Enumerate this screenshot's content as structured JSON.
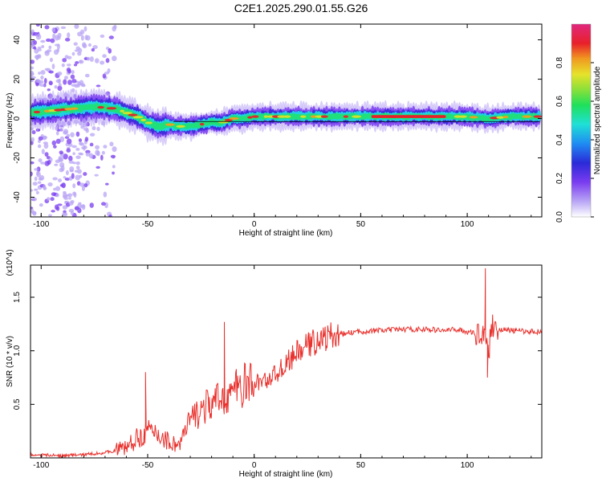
{
  "title": "C2E1.2025.290.01.55.G26",
  "colors": {
    "snr_line": "#e8302c",
    "colormap": [
      "#b9a6f5",
      "#7a3cf0",
      "#3a2ad8",
      "#1f6cf2",
      "#1fd6e6",
      "#1fe07a",
      "#7ae03a",
      "#d8e22a",
      "#f0a020",
      "#e8202a",
      "#e0206e",
      "#e0287e"
    ]
  },
  "colorbar": {
    "label": "Normalized spectral amplitude",
    "ticks": [
      "0.0",
      "0.2",
      "0.4",
      "0.6",
      "0.8"
    ]
  },
  "chart_data": [
    {
      "type": "heatmap",
      "xlabel": "Height of straight line (km)",
      "ylabel": "Frequency (Hz)",
      "xlim": [
        -105,
        135
      ],
      "ylim": [
        -50,
        48
      ],
      "xticks": [
        "-100",
        "-50",
        "0",
        "50",
        "100"
      ],
      "yticks": [
        "40",
        "20",
        "0",
        "-20",
        "-40"
      ],
      "ridge": {
        "x": [
          -105,
          -95,
          -85,
          -75,
          -65,
          -60,
          -55,
          -50,
          -45,
          -40,
          -35,
          -30,
          -25,
          -20,
          -15,
          -10,
          -5,
          0,
          10,
          20,
          40,
          60,
          80,
          100,
          110,
          120,
          135
        ],
        "freq": [
          3,
          4,
          5,
          6,
          5,
          3,
          1,
          -2,
          -4,
          -3,
          -4,
          -4,
          -3,
          -2,
          -2,
          0,
          0,
          1,
          1,
          1,
          1,
          1,
          1,
          1,
          0,
          1,
          1
        ]
      },
      "noise_region_x": [
        -105,
        -65
      ]
    },
    {
      "type": "line",
      "xlabel": "Height of straight line (km)",
      "ylabel": "SNR (10 * v/v)",
      "y_multiplier": "(x10^4)",
      "xlim": [
        -105,
        135
      ],
      "ylim": [
        0,
        1.8
      ],
      "xticks": [
        "-100",
        "-50",
        "0",
        "50",
        "100"
      ],
      "yticks": [
        "1.5",
        "1.0",
        "0.5"
      ],
      "series": [
        {
          "x": [
            -105,
            -90,
            -80,
            -70,
            -65,
            -60,
            -55,
            -50,
            -45,
            -40,
            -35,
            -30,
            -25,
            -20,
            -15,
            -10,
            -5,
            0,
            5,
            10,
            15,
            20,
            25,
            30,
            35,
            40,
            45,
            50,
            60,
            70,
            80,
            90,
            95,
            100,
            105,
            108,
            110,
            112,
            115,
            120,
            130,
            135
          ],
          "y": [
            0.03,
            0.02,
            0.03,
            0.05,
            0.07,
            0.1,
            0.18,
            0.25,
            0.22,
            0.15,
            0.12,
            0.35,
            0.45,
            0.5,
            0.55,
            0.62,
            0.68,
            0.7,
            0.72,
            0.78,
            0.88,
            0.98,
            1.05,
            1.1,
            1.13,
            1.15,
            1.17,
            1.18,
            1.19,
            1.2,
            1.2,
            1.19,
            1.2,
            1.18,
            1.15,
            1.2,
            1.0,
            1.25,
            1.2,
            1.19,
            1.18,
            1.18
          ]
        }
      ],
      "spikes": [
        {
          "x": -51,
          "y": 0.8
        },
        {
          "x": -14,
          "y": 1.27
        },
        {
          "x": 108.5,
          "y": 1.77
        },
        {
          "x": 109.5,
          "y": 0.75
        }
      ]
    }
  ]
}
